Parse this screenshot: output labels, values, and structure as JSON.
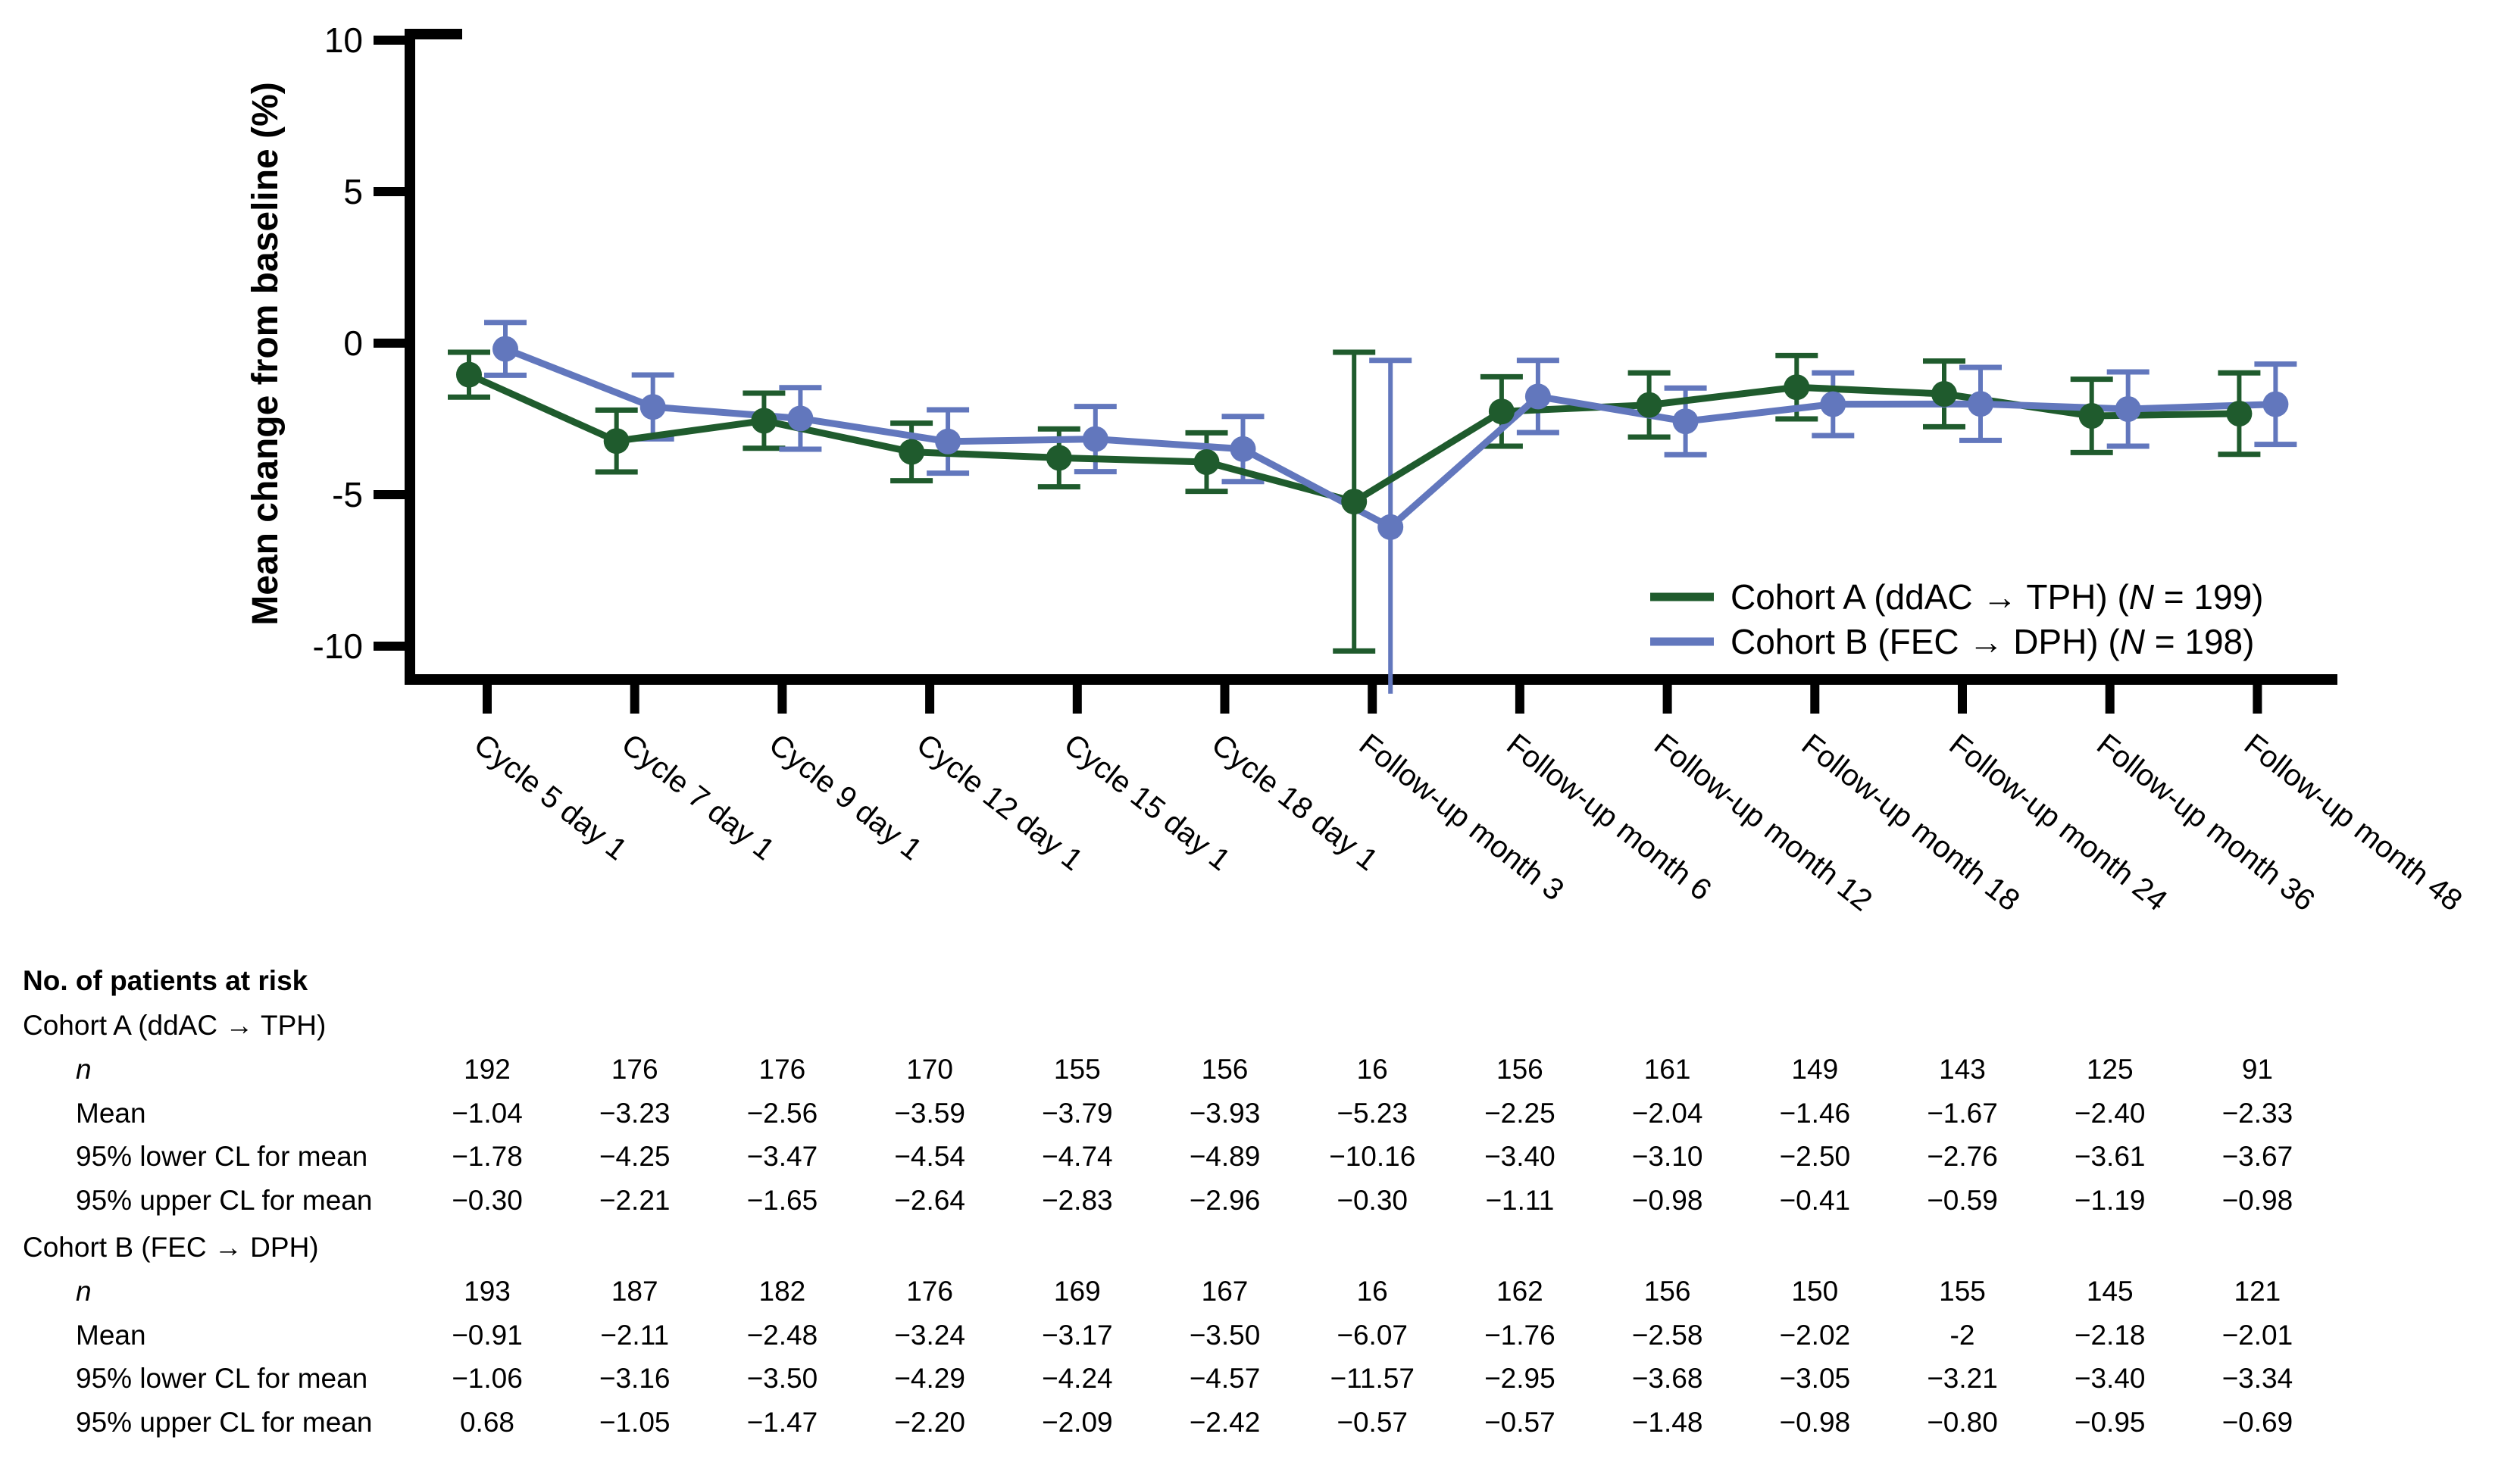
{
  "chart_data": {
    "type": "line",
    "title": "",
    "ylabel": "Mean change from baseline (%)",
    "ylim": [
      -10,
      10
    ],
    "yticks": [
      10,
      5,
      0,
      -5,
      -10
    ],
    "grid": false,
    "legend_position": "inside lower right",
    "categories": [
      "Cycle 5 day 1",
      "Cycle 7 day 1",
      "Cycle 9 day 1",
      "Cycle 12 day 1",
      "Cycle 15 day 1",
      "Cycle 18 day 1",
      "Follow-up month 3",
      "Follow-up month 6",
      "Follow-up month 12",
      "Follow-up month 18",
      "Follow-up month 24",
      "Follow-up month 36",
      "Follow-up month 48"
    ],
    "series": [
      {
        "legend": {
          "before": "Cohort A (ddAC → TPH) (",
          "n_symbol": "N",
          "after": " = 199)"
        },
        "color": "#1f5b2d",
        "n": [
          192,
          176,
          176,
          170,
          155,
          156,
          16,
          156,
          161,
          149,
          143,
          125,
          91
        ],
        "mean": [
          -1.04,
          -3.23,
          -2.56,
          -3.59,
          -3.79,
          -3.93,
          -5.23,
          -2.25,
          -2.04,
          -1.46,
          -1.67,
          -2.4,
          -2.33
        ],
        "lower95_cl": [
          -1.78,
          -4.25,
          -3.47,
          -4.54,
          -4.74,
          -4.89,
          -10.16,
          -3.4,
          -3.1,
          -2.5,
          -2.76,
          -3.61,
          -3.67
        ],
        "upper95_cl": [
          -0.3,
          -2.21,
          -1.65,
          -2.64,
          -2.83,
          -2.96,
          -0.3,
          -1.11,
          -0.98,
          -0.41,
          -0.59,
          -1.19,
          -0.98
        ]
      },
      {
        "legend": {
          "before": "Cohort B (FEC → DPH) (",
          "n_symbol": "N",
          "after": " = 198)"
        },
        "color": "#6277bd",
        "n": [
          193,
          187,
          182,
          176,
          169,
          167,
          16,
          162,
          156,
          150,
          155,
          145,
          121
        ],
        "mean": [
          -0.91,
          -2.11,
          -2.48,
          -3.24,
          -3.17,
          -3.5,
          -6.07,
          -1.76,
          -2.58,
          -2.02,
          -2.0,
          -2.18,
          -2.01
        ],
        "lower95_cl": [
          -1.06,
          -3.16,
          -3.5,
          -4.29,
          -4.24,
          -4.57,
          -11.57,
          -2.95,
          -3.68,
          -3.05,
          -3.21,
          -3.4,
          -3.34
        ],
        "upper95_cl": [
          0.68,
          -1.05,
          -1.47,
          -2.2,
          -2.09,
          -2.42,
          -0.57,
          -0.57,
          -1.48,
          -0.98,
          -0.8,
          -0.95,
          -0.69
        ]
      }
    ]
  },
  "risk_table": {
    "title": "No. of patients at risk",
    "cohorts": [
      {
        "label": "Cohort A (ddAC → TPH)"
      },
      {
        "label": "Cohort B (FEC → DPH)"
      }
    ],
    "row_labels": {
      "n": "n",
      "mean": "Mean",
      "lower": "95% lower CL for mean",
      "upper": "95% upper CL for mean"
    }
  }
}
